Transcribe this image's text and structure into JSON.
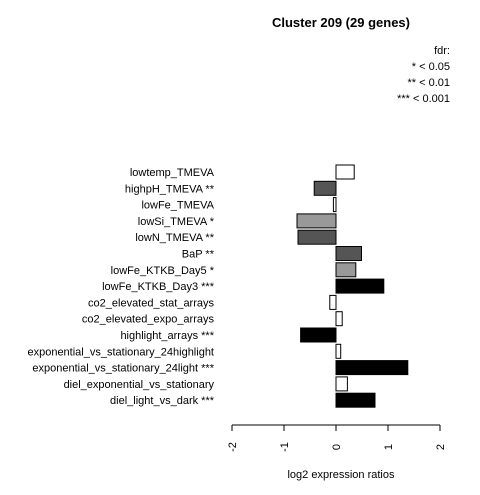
{
  "chart_data": {
    "type": "bar",
    "orientation": "horizontal",
    "title": "Cluster 209 (29 genes)",
    "xlabel": "log2 expression ratios",
    "xlim": [
      -2,
      2
    ],
    "xticks": [
      "-2",
      "-1",
      "0",
      "1",
      "2"
    ],
    "legend": {
      "title": "fdr:",
      "entries": [
        "* < 0.05",
        "** < 0.01",
        "*** < 0.001"
      ],
      "placement": "top-right"
    },
    "categories": [
      "lowtemp_TMEVA",
      "highpH_TMEVA **",
      "lowFe_TMEVA",
      "lowSi_TMEVA *",
      "lowN_TMEVA **",
      "BaP **",
      "lowFe_KTKB_Day5 *",
      "lowFe_KTKB_Day3 ***",
      "co2_elevated_stat_arrays",
      "co2_elevated_expo_arrays",
      "highlight_arrays ***",
      "exponential_vs_stationary_24highlight",
      "exponential_vs_stationary_24light ***",
      "diel_exponential_vs_stationary",
      "diel_light_vs_dark ***"
    ],
    "values": [
      0.35,
      -0.42,
      -0.05,
      -0.75,
      -0.73,
      0.49,
      0.38,
      0.92,
      -0.12,
      0.12,
      -0.68,
      0.09,
      1.38,
      0.22,
      0.75
    ],
    "fill_colors": [
      "#ffffff",
      "#555555",
      "#ffffff",
      "#999999",
      "#555555",
      "#555555",
      "#999999",
      "#000000",
      "#ffffff",
      "#ffffff",
      "#000000",
      "#ffffff",
      "#000000",
      "#ffffff",
      "#000000"
    ],
    "grid": false
  }
}
